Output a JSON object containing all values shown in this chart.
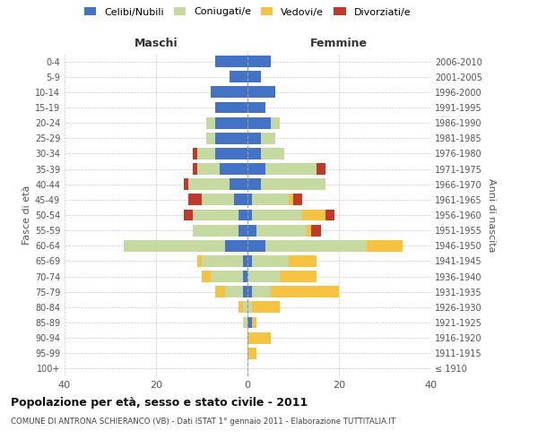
{
  "age_groups": [
    "100+",
    "95-99",
    "90-94",
    "85-89",
    "80-84",
    "75-79",
    "70-74",
    "65-69",
    "60-64",
    "55-59",
    "50-54",
    "45-49",
    "40-44",
    "35-39",
    "30-34",
    "25-29",
    "20-24",
    "15-19",
    "10-14",
    "5-9",
    "0-4"
  ],
  "birth_years": [
    "≤ 1910",
    "1911-1915",
    "1916-1920",
    "1921-1925",
    "1926-1930",
    "1931-1935",
    "1936-1940",
    "1941-1945",
    "1946-1950",
    "1951-1955",
    "1956-1960",
    "1961-1965",
    "1966-1970",
    "1971-1975",
    "1976-1980",
    "1981-1985",
    "1986-1990",
    "1991-1995",
    "1996-2000",
    "2001-2005",
    "2006-2010"
  ],
  "maschi": {
    "celibi": [
      0,
      0,
      0,
      0,
      0,
      1,
      1,
      1,
      5,
      2,
      2,
      3,
      4,
      6,
      7,
      7,
      7,
      7,
      8,
      4,
      7
    ],
    "coniugati": [
      0,
      0,
      0,
      1,
      1,
      4,
      7,
      9,
      22,
      10,
      10,
      7,
      9,
      5,
      4,
      2,
      2,
      0,
      0,
      0,
      0
    ],
    "vedovi": [
      0,
      0,
      0,
      0,
      1,
      2,
      2,
      1,
      0,
      0,
      0,
      0,
      0,
      0,
      0,
      0,
      0,
      0,
      0,
      0,
      0
    ],
    "divorziati": [
      0,
      0,
      0,
      0,
      0,
      0,
      0,
      0,
      0,
      0,
      2,
      3,
      1,
      1,
      1,
      0,
      0,
      0,
      0,
      0,
      0
    ]
  },
  "femmine": {
    "nubili": [
      0,
      0,
      0,
      1,
      0,
      1,
      0,
      1,
      4,
      2,
      1,
      1,
      3,
      4,
      3,
      3,
      5,
      4,
      6,
      3,
      5
    ],
    "coniugate": [
      0,
      0,
      0,
      0,
      1,
      4,
      7,
      8,
      22,
      11,
      11,
      8,
      14,
      11,
      5,
      3,
      2,
      0,
      0,
      0,
      0
    ],
    "vedove": [
      0,
      2,
      5,
      1,
      6,
      15,
      8,
      6,
      8,
      1,
      5,
      1,
      0,
      0,
      0,
      0,
      0,
      0,
      0,
      0,
      0
    ],
    "divorziate": [
      0,
      0,
      0,
      0,
      0,
      0,
      0,
      0,
      0,
      2,
      2,
      2,
      0,
      2,
      0,
      0,
      0,
      0,
      0,
      0,
      0
    ]
  },
  "color_celibi": "#4472c4",
  "color_coniugati": "#c5d9a0",
  "color_vedovi": "#f5c242",
  "color_divorziati": "#c0392b",
  "title": "Popolazione per età, sesso e stato civile - 2011",
  "subtitle": "COMUNE DI ANTRONA SCHIERANCO (VB) - Dati ISTAT 1° gennaio 2011 - Elaborazione TUTTITALIA.IT",
  "xlabel_left": "Maschi",
  "xlabel_right": "Femmine",
  "ylabel_left": "Fasce di età",
  "ylabel_right": "Anni di nascita",
  "xlim": 40,
  "bg_color": "#ffffff",
  "grid_color": "#cccccc"
}
